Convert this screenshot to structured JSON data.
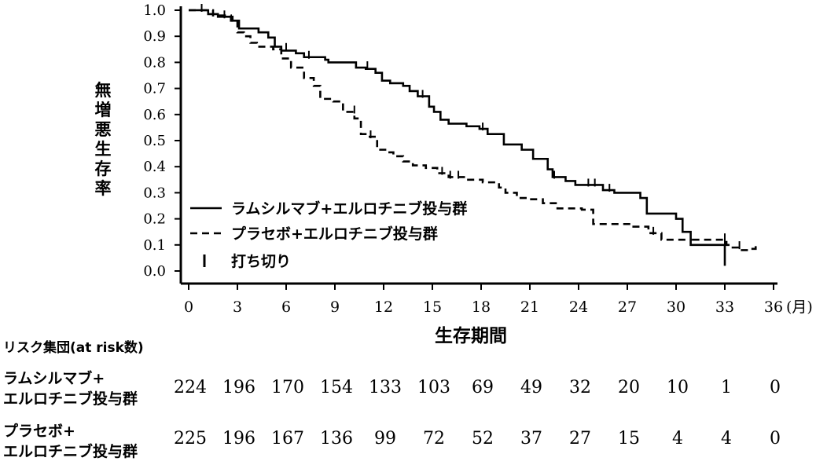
{
  "chart_data": {
    "type": "line",
    "step": true,
    "xlabel": "生存期間",
    "ylabel": "無増悪生存率",
    "x_unit": "(月)",
    "xlim": [
      0,
      36
    ],
    "ylim": [
      0,
      1.0
    ],
    "xticks": [
      0,
      3,
      6,
      9,
      12,
      15,
      18,
      21,
      24,
      27,
      30,
      33,
      36
    ],
    "yticks": [
      "0.0",
      "0.1",
      "0.2",
      "0.3",
      "0.4",
      "0.5",
      "0.6",
      "0.7",
      "0.8",
      "0.9",
      "1.0"
    ],
    "legend": [
      "ラムシルマブ+エルロチニブ投与群",
      "プラセボ+エルロチニブ投与群",
      "打ち切り"
    ],
    "series": [
      {
        "name": "ラムシルマブ+エルロチニブ投与群",
        "style": "solid",
        "points": [
          [
            0,
            1.0
          ],
          [
            1.2,
            0.985
          ],
          [
            1.8,
            0.975
          ],
          [
            2.7,
            0.96
          ],
          [
            3.1,
            0.93
          ],
          [
            4.3,
            0.915
          ],
          [
            4.9,
            0.895
          ],
          [
            5.3,
            0.86
          ],
          [
            5.7,
            0.845
          ],
          [
            6.6,
            0.835
          ],
          [
            7.1,
            0.82
          ],
          [
            8.4,
            0.81
          ],
          [
            8.6,
            0.8
          ],
          [
            10.3,
            0.78
          ],
          [
            10.9,
            0.775
          ],
          [
            11.5,
            0.76
          ],
          [
            11.9,
            0.73
          ],
          [
            12.4,
            0.72
          ],
          [
            13.2,
            0.71
          ],
          [
            13.6,
            0.69
          ],
          [
            14.1,
            0.67
          ],
          [
            14.8,
            0.63
          ],
          [
            15.1,
            0.61
          ],
          [
            15.5,
            0.58
          ],
          [
            16.0,
            0.565
          ],
          [
            17.1,
            0.555
          ],
          [
            17.9,
            0.545
          ],
          [
            18.4,
            0.525
          ],
          [
            19.4,
            0.485
          ],
          [
            20.5,
            0.465
          ],
          [
            21.2,
            0.43
          ],
          [
            22.1,
            0.39
          ],
          [
            22.4,
            0.36
          ],
          [
            23.2,
            0.345
          ],
          [
            23.8,
            0.33
          ],
          [
            25.5,
            0.31
          ],
          [
            26.2,
            0.3
          ],
          [
            27.8,
            0.28
          ],
          [
            28.2,
            0.22
          ],
          [
            30.0,
            0.2
          ],
          [
            30.4,
            0.15
          ],
          [
            30.9,
            0.1
          ],
          [
            33.0,
            0.1
          ]
        ],
        "censors": [
          [
            0.8,
            1.0
          ],
          [
            2.2,
            0.975
          ],
          [
            7.4,
            0.82
          ],
          [
            11.0,
            0.78
          ],
          [
            14.4,
            0.67
          ],
          [
            18.1,
            0.545
          ],
          [
            22.5,
            0.36
          ],
          [
            24.6,
            0.33
          ],
          [
            25.0,
            0.33
          ],
          [
            25.9,
            0.31
          ],
          [
            33.0,
            0.1
          ]
        ],
        "end": {
          "x": 33.0,
          "y": 0.02
        }
      },
      {
        "name": "プラセボ+エルロチニブ投与群",
        "style": "dashed",
        "points": [
          [
            0,
            1.0
          ],
          [
            1.5,
            0.98
          ],
          [
            2.6,
            0.96
          ],
          [
            3.0,
            0.915
          ],
          [
            3.4,
            0.9
          ],
          [
            3.8,
            0.875
          ],
          [
            4.2,
            0.86
          ],
          [
            5.2,
            0.85
          ],
          [
            5.7,
            0.815
          ],
          [
            6.3,
            0.78
          ],
          [
            7.1,
            0.74
          ],
          [
            7.7,
            0.71
          ],
          [
            8.1,
            0.66
          ],
          [
            8.9,
            0.65
          ],
          [
            9.5,
            0.61
          ],
          [
            10.2,
            0.585
          ],
          [
            10.6,
            0.525
          ],
          [
            11.0,
            0.515
          ],
          [
            11.6,
            0.465
          ],
          [
            12.1,
            0.455
          ],
          [
            12.6,
            0.44
          ],
          [
            13.2,
            0.42
          ],
          [
            13.8,
            0.405
          ],
          [
            14.6,
            0.395
          ],
          [
            15.3,
            0.375
          ],
          [
            16.0,
            0.36
          ],
          [
            17.2,
            0.35
          ],
          [
            18.1,
            0.34
          ],
          [
            19.1,
            0.32
          ],
          [
            19.5,
            0.3
          ],
          [
            20.2,
            0.28
          ],
          [
            21.0,
            0.275
          ],
          [
            21.8,
            0.26
          ],
          [
            22.7,
            0.24
          ],
          [
            24.2,
            0.235
          ],
          [
            24.9,
            0.18
          ],
          [
            27.2,
            0.17
          ],
          [
            28.3,
            0.145
          ],
          [
            29.1,
            0.12
          ],
          [
            31.0,
            0.12
          ]
        ],
        "censors": [
          [
            6.0,
            0.85
          ],
          [
            10.2,
            0.61
          ],
          [
            11.2,
            0.515
          ],
          [
            15.6,
            0.375
          ],
          [
            16.1,
            0.36
          ],
          [
            16.6,
            0.36
          ],
          [
            28.6,
            0.145
          ],
          [
            33.0,
            0.12
          ],
          [
            33.9,
            0.09
          ]
        ],
        "tail": [
          [
            31.0,
            0.12
          ],
          [
            33.0,
            0.12
          ],
          [
            33.1,
            0.1
          ],
          [
            33.4,
            0.09
          ],
          [
            33.8,
            0.08
          ],
          [
            34.7,
            0.085
          ],
          [
            34.9,
            0.1
          ]
        ]
      }
    ],
    "risk_table": {
      "title": "リスク集団(at risk数)",
      "rows": [
        {
          "label": [
            "ラムシルマブ+",
            "エルロチニブ投与群"
          ],
          "counts": [
            "224",
            "196",
            "170",
            "154",
            "133",
            "103",
            "69",
            "49",
            "32",
            "20",
            "10",
            "1",
            "0"
          ]
        },
        {
          "label": [
            "プラセボ+",
            "エルロチニブ投与群"
          ],
          "counts": [
            "225",
            "196",
            "167",
            "136",
            "99",
            "72",
            "52",
            "37",
            "27",
            "15",
            "4",
            "4",
            "0"
          ]
        }
      ]
    }
  }
}
